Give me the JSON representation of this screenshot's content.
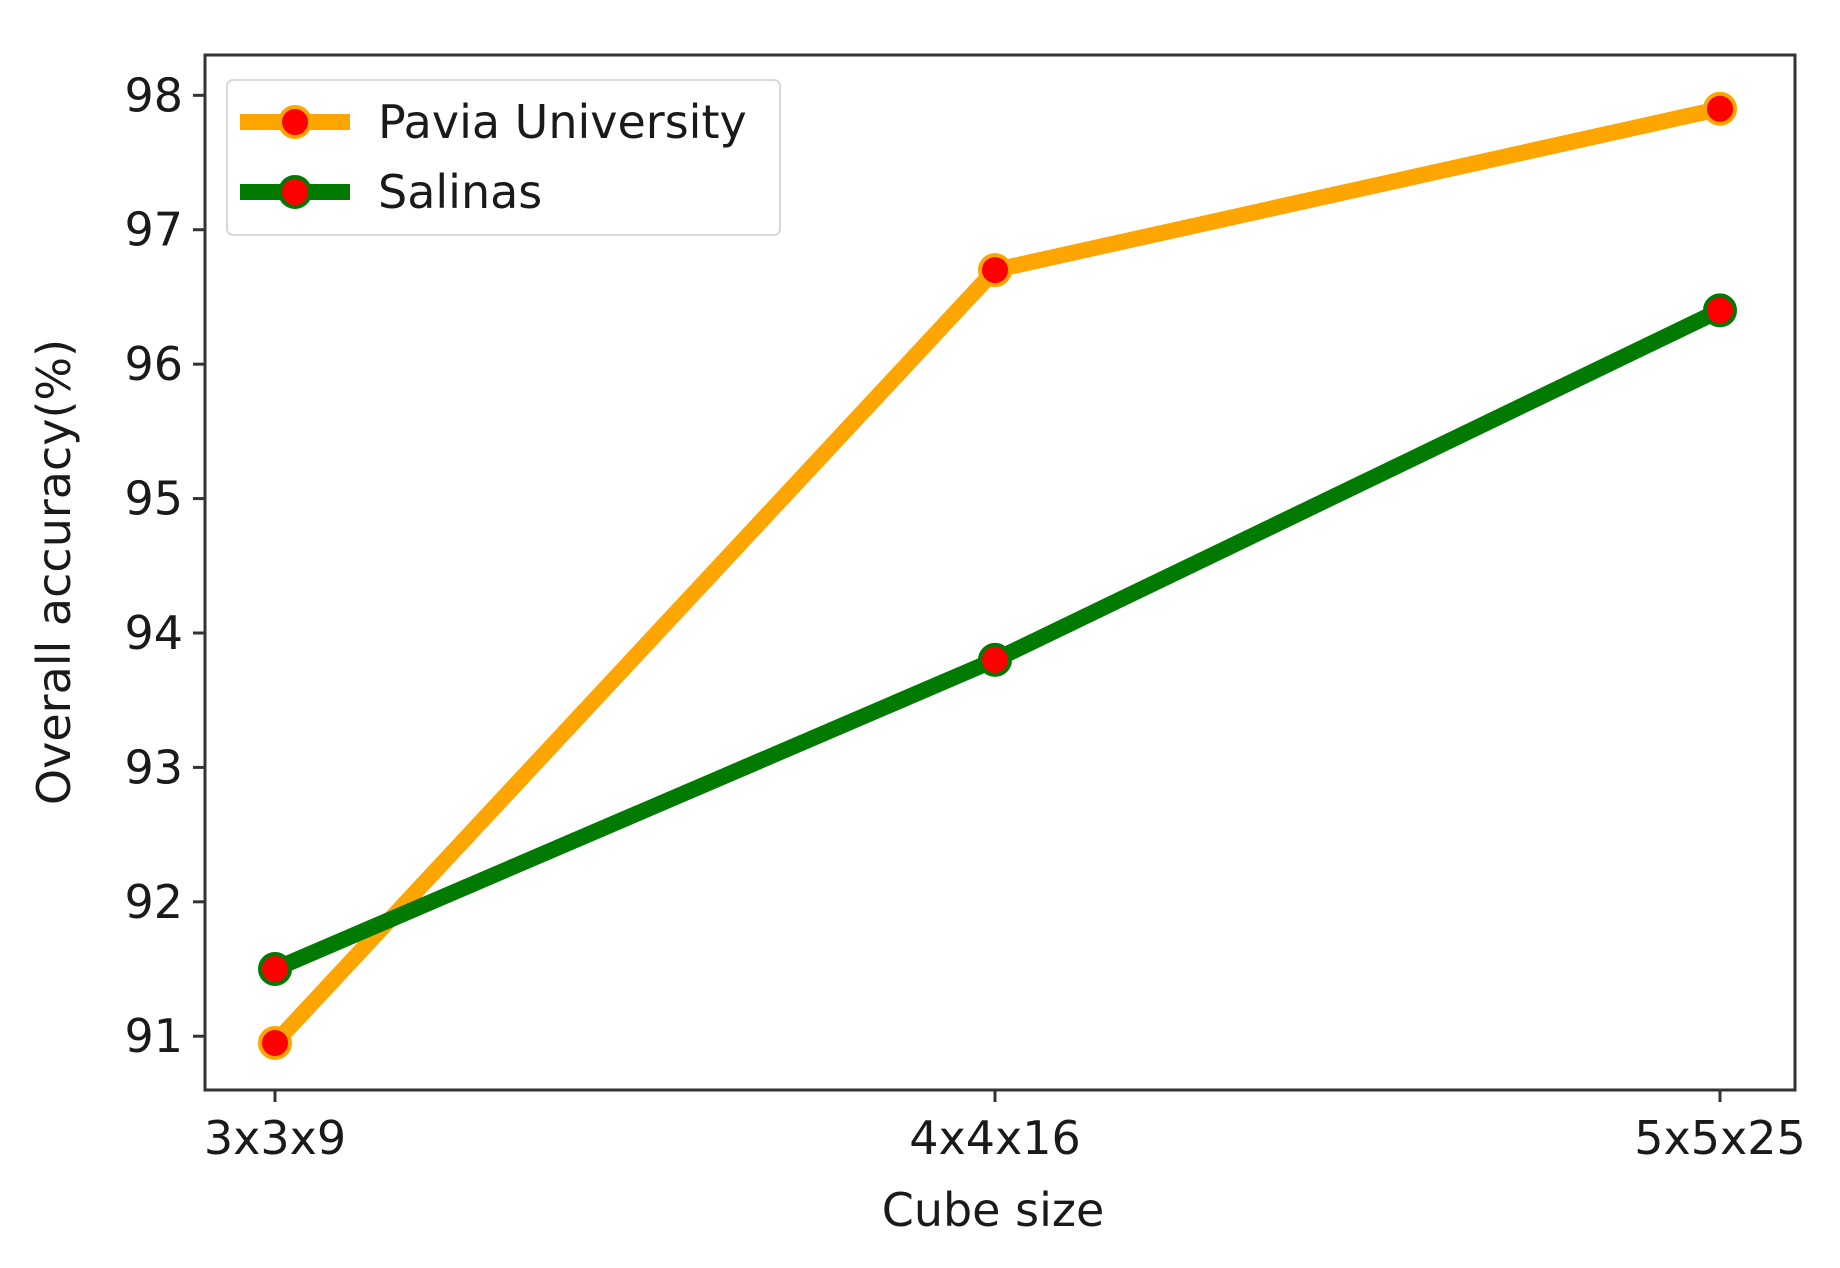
{
  "chart_data": {
    "type": "line",
    "title": "",
    "xlabel": "Cube size",
    "ylabel": "Overall accuracy(%)",
    "categories": [
      "3x3x9",
      "4x4x16",
      "5x5x25"
    ],
    "ylim": [
      90.6,
      98.3
    ],
    "yticks": [
      91,
      92,
      93,
      94,
      95,
      96,
      97,
      98
    ],
    "grid": false,
    "legend_position": "top-left",
    "marker_color": "#ff0000",
    "series": [
      {
        "name": "Pavia University",
        "color": "#ffa500",
        "values": [
          90.95,
          96.7,
          97.9
        ]
      },
      {
        "name": "Salinas",
        "color": "#007a00",
        "values": [
          91.5,
          93.8,
          96.4
        ]
      }
    ]
  }
}
